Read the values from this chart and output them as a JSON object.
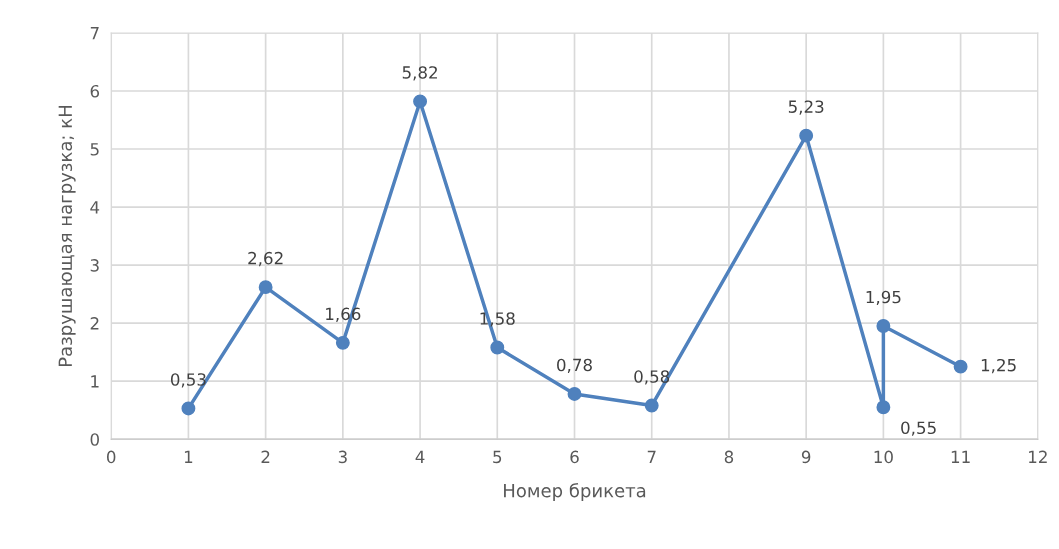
{
  "chart_data": {
    "type": "line",
    "xlabel": "Номер брикета",
    "ylabel": "Разрушающая нагрузка; кН",
    "x": [
      1,
      2,
      3,
      4,
      5,
      6,
      7,
      9,
      10,
      10,
      11
    ],
    "series": [
      {
        "color": "#4f81bd",
        "values": [
          0.53,
          2.62,
          1.66,
          5.82,
          1.58,
          0.78,
          0.58,
          5.23,
          0.55,
          1.95,
          1.25
        ],
        "value_labels": [
          "0,53",
          "2,62",
          "1,66",
          "5,82",
          "1,58",
          "0,78",
          "0,58",
          "5,23",
          "0,55",
          "1,95",
          "1,25"
        ]
      }
    ],
    "xlim": [
      0,
      12
    ],
    "xticks": [
      0,
      1,
      2,
      3,
      4,
      5,
      6,
      7,
      8,
      9,
      10,
      11,
      12
    ],
    "ylim": [
      0,
      7
    ],
    "yticks": [
      0,
      1,
      2,
      3,
      4,
      5,
      6,
      7
    ],
    "grid": true,
    "marker": "circle",
    "line_style": "solid",
    "legend": false
  }
}
